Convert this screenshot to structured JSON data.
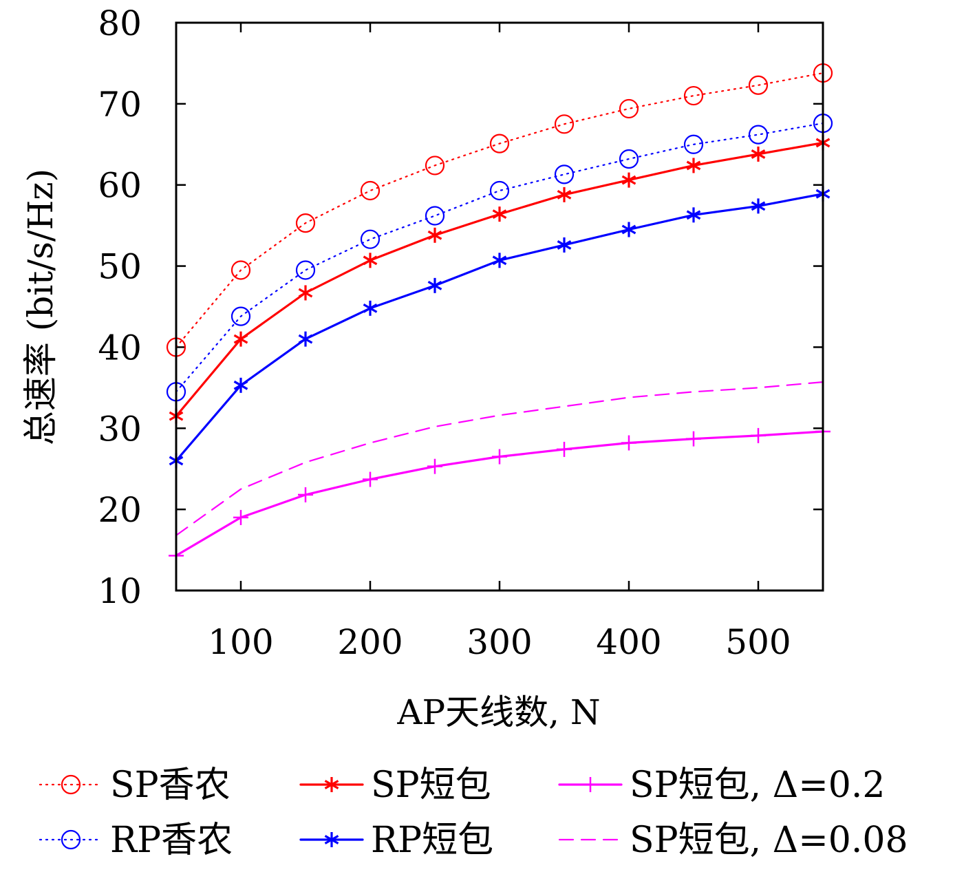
{
  "chart_data": {
    "type": "line",
    "xlabel": "AP天线数, N",
    "ylabel": "总速率 (bit/s/Hz)",
    "xlim": [
      50,
      550
    ],
    "ylim": [
      10,
      80
    ],
    "xticks": [
      100,
      200,
      300,
      400,
      500
    ],
    "yticks": [
      10,
      20,
      30,
      40,
      50,
      60,
      70,
      80
    ],
    "x": [
      50,
      100,
      150,
      200,
      250,
      300,
      350,
      400,
      450,
      500,
      550
    ],
    "legend_position": "bottom",
    "series": [
      {
        "name": "SP香农",
        "color": "#ff0000",
        "line": "dotted",
        "marker": "circle",
        "values": [
          40.0,
          49.5,
          55.3,
          59.3,
          62.4,
          65.1,
          67.5,
          69.4,
          71.0,
          72.3,
          73.8
        ]
      },
      {
        "name": "SP短包",
        "color": "#ff0000",
        "line": "solid",
        "marker": "asterisk",
        "values": [
          31.5,
          41.0,
          46.7,
          50.7,
          53.8,
          56.4,
          58.8,
          60.6,
          62.4,
          63.8,
          65.2
        ]
      },
      {
        "name": "SP短包, Δ=0.2",
        "color": "#ff00ff",
        "line": "solid",
        "marker": "plus",
        "values": [
          14.3,
          19.0,
          21.8,
          23.7,
          25.3,
          26.5,
          27.4,
          28.2,
          28.7,
          29.1,
          29.6
        ]
      },
      {
        "name": "RP香农",
        "color": "#0000ff",
        "line": "dotted",
        "marker": "circle",
        "values": [
          34.5,
          43.8,
          49.5,
          53.3,
          56.2,
          59.3,
          61.3,
          63.2,
          65.0,
          66.2,
          67.6
        ]
      },
      {
        "name": "RP短包",
        "color": "#0000ff",
        "line": "solid",
        "marker": "asterisk",
        "values": [
          26.0,
          35.3,
          41.0,
          44.8,
          47.6,
          50.7,
          52.6,
          54.5,
          56.3,
          57.4,
          58.9
        ]
      },
      {
        "name": "SP短包, Δ=0.08",
        "color": "#ff00ff",
        "line": "dashed",
        "marker": "none",
        "values": [
          16.8,
          22.5,
          25.8,
          28.2,
          30.2,
          31.6,
          32.7,
          33.8,
          34.5,
          35.0,
          35.7
        ]
      }
    ]
  }
}
